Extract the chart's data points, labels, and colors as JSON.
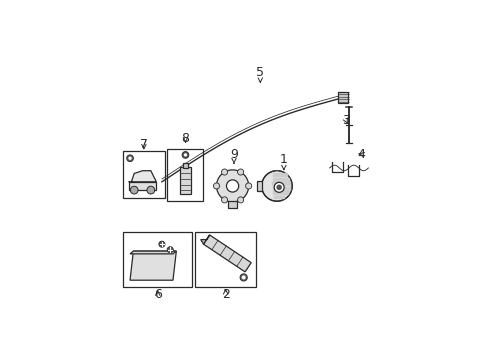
{
  "bg_color": "#ffffff",
  "line_color": "#2a2a2a",
  "figsize": [
    4.89,
    3.6
  ],
  "dpi": 100,
  "boxes": {
    "7": [
      0.04,
      0.44,
      0.15,
      0.17
    ],
    "8": [
      0.2,
      0.43,
      0.13,
      0.19
    ],
    "6": [
      0.04,
      0.12,
      0.25,
      0.2
    ],
    "2": [
      0.3,
      0.12,
      0.22,
      0.2
    ]
  },
  "label_positions": {
    "1": [
      0.62,
      0.58,
      0.62,
      0.54
    ],
    "2": [
      0.41,
      0.095,
      0.41,
      0.115
    ],
    "3": [
      0.845,
      0.72,
      0.855,
      0.7
    ],
    "4": [
      0.9,
      0.6,
      0.88,
      0.605
    ],
    "5": [
      0.535,
      0.895,
      0.535,
      0.855
    ],
    "6": [
      0.165,
      0.095,
      0.165,
      0.12
    ],
    "7": [
      0.115,
      0.635,
      0.115,
      0.615
    ],
    "8": [
      0.265,
      0.655,
      0.265,
      0.63
    ],
    "9": [
      0.44,
      0.6,
      0.44,
      0.565
    ]
  }
}
